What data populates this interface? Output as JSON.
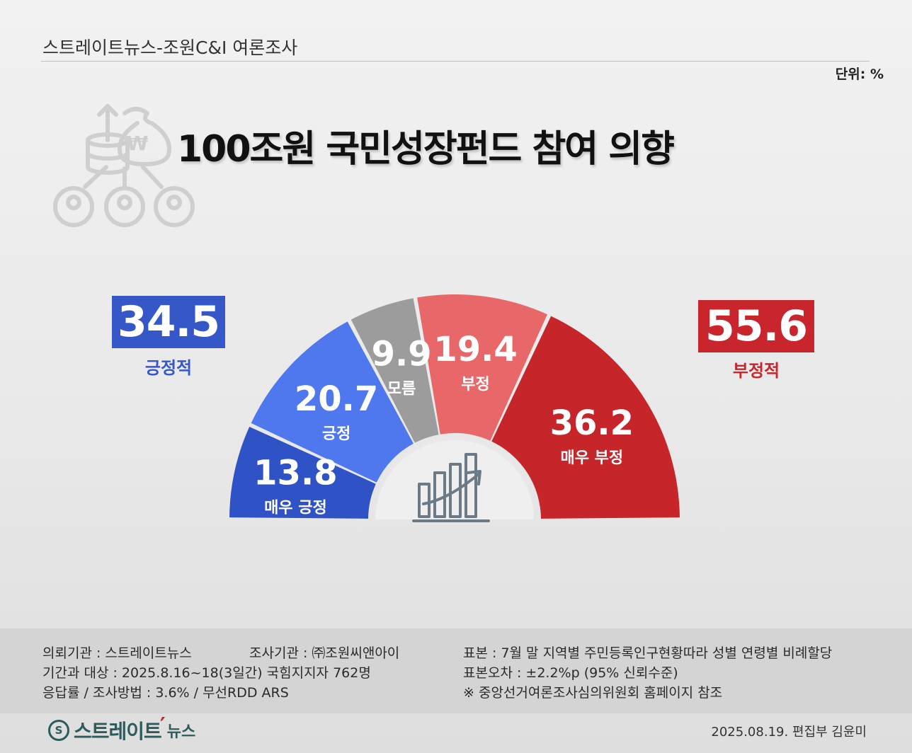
{
  "header": {
    "source": "스트레이트뉴스-조원C&I 여론조사",
    "unit": "단위: %"
  },
  "title": "100조원 국민성장펀드 참여 의향",
  "summary": {
    "positive": {
      "value": "34.5",
      "label": "긍정적",
      "color": "#3557c8"
    },
    "negative": {
      "value": "55.6",
      "label": "부정적",
      "color": "#c8252c"
    }
  },
  "chart_data": {
    "type": "pie",
    "variant": "half-donut",
    "categories": [
      "매우 긍정",
      "긍정",
      "모름",
      "부정",
      "매우 부정"
    ],
    "values": [
      13.8,
      20.7,
      9.9,
      19.4,
      36.2
    ],
    "value_labels": [
      "13.8",
      "20.7",
      "9.9",
      "19.4",
      "36.2"
    ],
    "colors": [
      "#2f52c7",
      "#4f78ee",
      "#9c9c9c",
      "#e8686a",
      "#c6252a"
    ]
  },
  "footer": {
    "client": "의뢰기관 : 스트레이트뉴스",
    "agency": "조사기관 : ㈜조원씨앤아이",
    "period": "기간과 대상 : 2025.8.16~18(3일간) 국힘지지자 762명",
    "method": "응답률 / 조사방법 : 3.6% / 무선RDD ARS",
    "sample": "표본 : 7월 말 지역별 주민등록인구현황따라 성별 연령별 비례할당",
    "error": "표본오차 : ±2.2%p (95% 신뢰수준)",
    "note": "※ 중앙선거여론조사심의위원회 홈페이지 참조"
  },
  "brand": {
    "logo_name": "스트레이트",
    "logo_sub": "뉴스",
    "date_credit": "2025.08.19. 편집부 김윤미"
  }
}
